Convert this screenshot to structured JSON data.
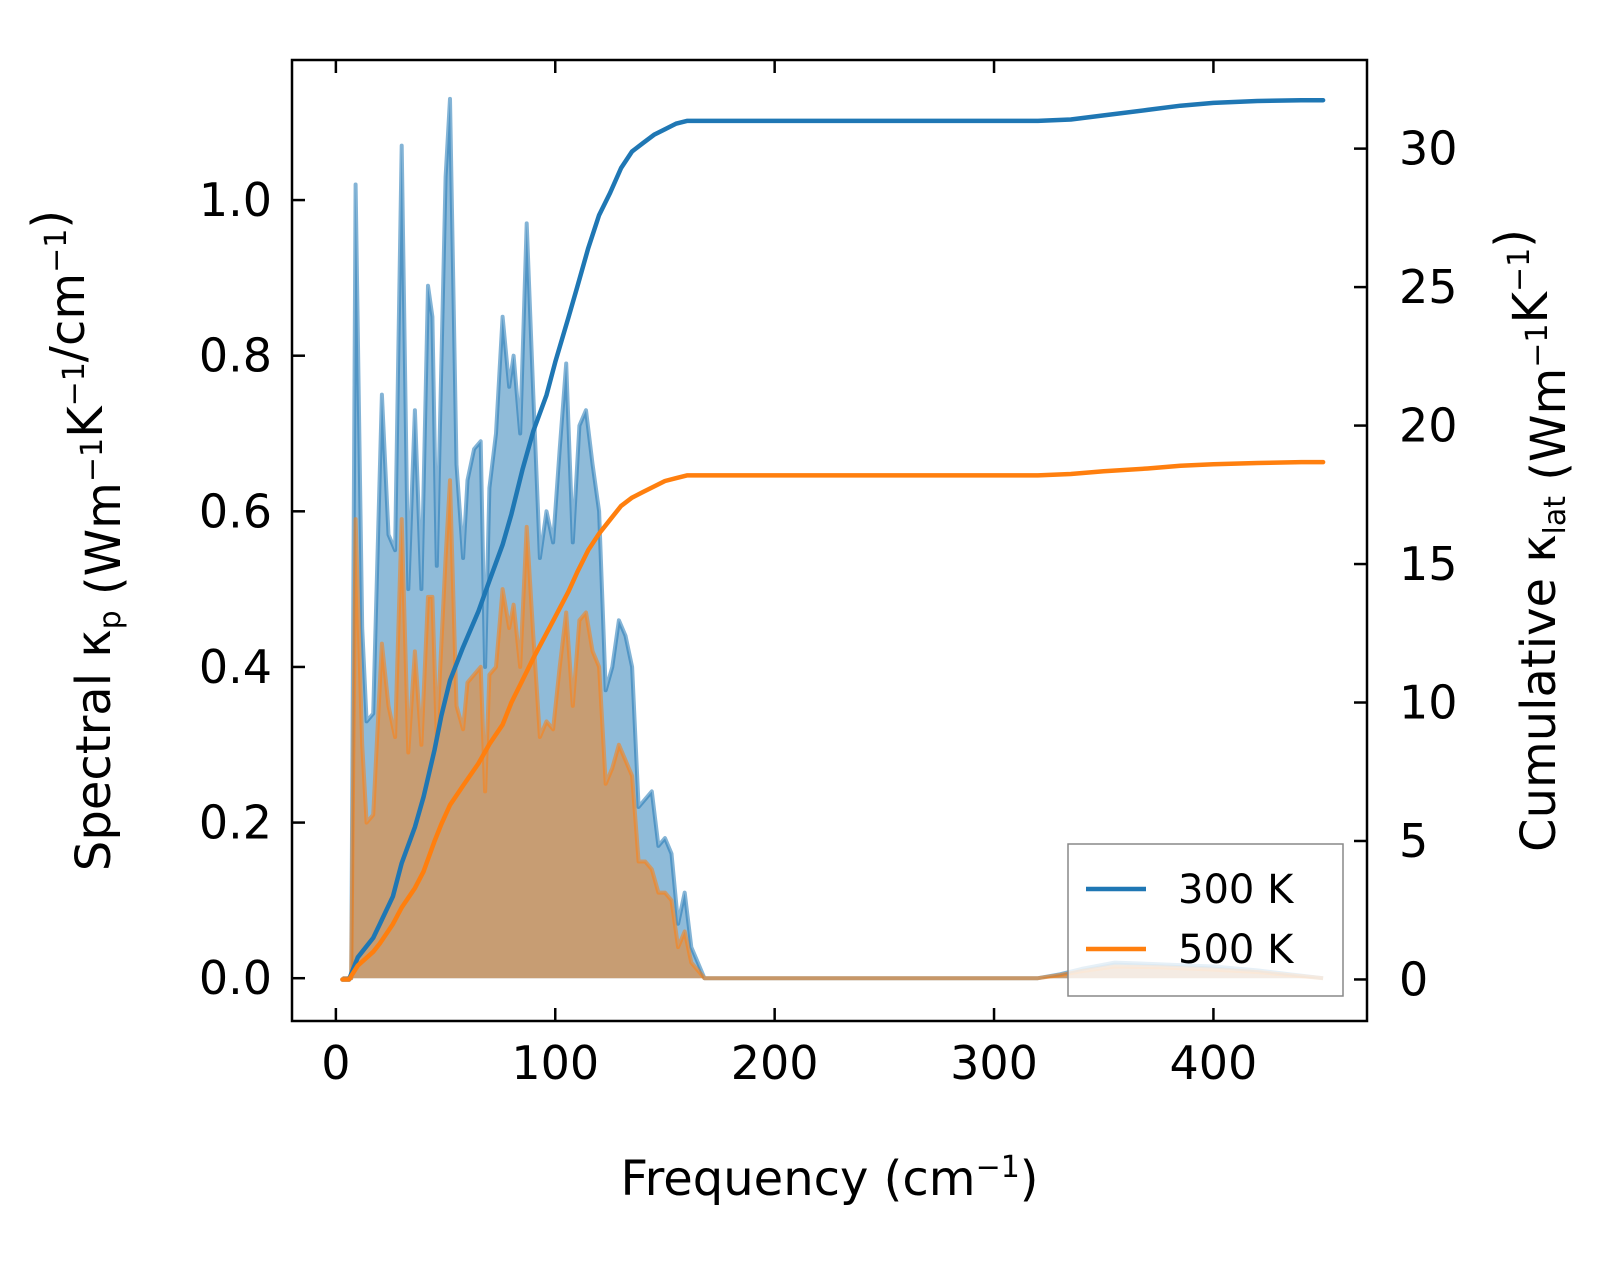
{
  "chart_data": {
    "type": "area",
    "xlabel": {
      "pre": "Frequency (cm",
      "sup": "−1",
      "post": ")"
    },
    "ylabel_left": {
      "parts": [
        {
          "t": "Spectral κ"
        },
        {
          "sub": "p"
        },
        {
          "t": " (Wm"
        },
        {
          "sup": "−1"
        },
        {
          "t": "K"
        },
        {
          "sup": "−1"
        },
        {
          "t": "/cm"
        },
        {
          "sup": "−1"
        },
        {
          "t": ")"
        }
      ]
    },
    "ylabel_right": {
      "parts": [
        {
          "t": "Cumulative κ"
        },
        {
          "sub": "lat"
        },
        {
          "t": " (Wm"
        },
        {
          "sup": "−1"
        },
        {
          "t": "K"
        },
        {
          "sup": "−1"
        },
        {
          "t": ")"
        }
      ]
    },
    "xlim": [
      -20,
      470
    ],
    "ylim_left": [
      -0.055,
      1.18
    ],
    "ylim_right": [
      -1.5,
      33.2
    ],
    "xticks": [
      0,
      100,
      200,
      300,
      400
    ],
    "xtick_labels": [
      "0",
      "100",
      "200",
      "300",
      "400"
    ],
    "yticks_left": [
      0.0,
      0.2,
      0.4,
      0.6,
      0.8,
      1.0
    ],
    "ytick_labels_left": [
      "0.0",
      "0.2",
      "0.4",
      "0.6",
      "0.8",
      "1.0"
    ],
    "yticks_right": [
      0,
      5,
      10,
      15,
      20,
      25,
      30
    ],
    "ytick_labels_right": [
      "0",
      "5",
      "10",
      "15",
      "20",
      "25",
      "30"
    ],
    "legend_position": "bottom-right",
    "spectral_series": [
      {
        "name": "300 K",
        "color": "#1f77b4",
        "points": [
          [
            3,
            0
          ],
          [
            7,
            0
          ],
          [
            9,
            1.02
          ],
          [
            12,
            0.45
          ],
          [
            14,
            0.33
          ],
          [
            17,
            0.34
          ],
          [
            21,
            0.75
          ],
          [
            24,
            0.57
          ],
          [
            27,
            0.55
          ],
          [
            30,
            1.07
          ],
          [
            33,
            0.5
          ],
          [
            36,
            0.73
          ],
          [
            39,
            0.5
          ],
          [
            42,
            0.89
          ],
          [
            44,
            0.85
          ],
          [
            46,
            0.53
          ],
          [
            50,
            1.03
          ],
          [
            52,
            1.13
          ],
          [
            55,
            0.66
          ],
          [
            58,
            0.54
          ],
          [
            60,
            0.64
          ],
          [
            63,
            0.68
          ],
          [
            66,
            0.69
          ],
          [
            68,
            0.4
          ],
          [
            70,
            0.63
          ],
          [
            73,
            0.7
          ],
          [
            76,
            0.85
          ],
          [
            79,
            0.76
          ],
          [
            81,
            0.8
          ],
          [
            84,
            0.7
          ],
          [
            87,
            0.97
          ],
          [
            90,
            0.75
          ],
          [
            93,
            0.54
          ],
          [
            96,
            0.6
          ],
          [
            99,
            0.56
          ],
          [
            102,
            0.68
          ],
          [
            105,
            0.79
          ],
          [
            108,
            0.56
          ],
          [
            111,
            0.71
          ],
          [
            114,
            0.73
          ],
          [
            117,
            0.66
          ],
          [
            120,
            0.6
          ],
          [
            123,
            0.37
          ],
          [
            126,
            0.4
          ],
          [
            129,
            0.46
          ],
          [
            132,
            0.44
          ],
          [
            135,
            0.4
          ],
          [
            138,
            0.22
          ],
          [
            141,
            0.23
          ],
          [
            144,
            0.24
          ],
          [
            147,
            0.17
          ],
          [
            150,
            0.18
          ],
          [
            153,
            0.16
          ],
          [
            156,
            0.07
          ],
          [
            159,
            0.11
          ],
          [
            162,
            0.04
          ],
          [
            165,
            0.02
          ],
          [
            168,
            0.0
          ],
          [
            320,
            0.0
          ],
          [
            330,
            0.005
          ],
          [
            340,
            0.012
          ],
          [
            355,
            0.02
          ],
          [
            375,
            0.018
          ],
          [
            400,
            0.015
          ],
          [
            420,
            0.01
          ],
          [
            435,
            0.005
          ],
          [
            450,
            0.0
          ]
        ]
      },
      {
        "name": "500 K",
        "color": "#ff7f0e",
        "points": [
          [
            3,
            0
          ],
          [
            7,
            0
          ],
          [
            9,
            0.59
          ],
          [
            12,
            0.3
          ],
          [
            14,
            0.2
          ],
          [
            17,
            0.21
          ],
          [
            21,
            0.43
          ],
          [
            24,
            0.35
          ],
          [
            27,
            0.31
          ],
          [
            30,
            0.59
          ],
          [
            33,
            0.29
          ],
          [
            36,
            0.42
          ],
          [
            39,
            0.3
          ],
          [
            42,
            0.49
          ],
          [
            44,
            0.49
          ],
          [
            46,
            0.31
          ],
          [
            50,
            0.54
          ],
          [
            52,
            0.64
          ],
          [
            55,
            0.35
          ],
          [
            58,
            0.32
          ],
          [
            60,
            0.38
          ],
          [
            63,
            0.39
          ],
          [
            66,
            0.4
          ],
          [
            68,
            0.24
          ],
          [
            70,
            0.39
          ],
          [
            73,
            0.4
          ],
          [
            76,
            0.5
          ],
          [
            79,
            0.45
          ],
          [
            81,
            0.48
          ],
          [
            84,
            0.4
          ],
          [
            87,
            0.58
          ],
          [
            90,
            0.44
          ],
          [
            93,
            0.31
          ],
          [
            96,
            0.33
          ],
          [
            99,
            0.32
          ],
          [
            102,
            0.4
          ],
          [
            105,
            0.47
          ],
          [
            108,
            0.35
          ],
          [
            111,
            0.46
          ],
          [
            114,
            0.47
          ],
          [
            117,
            0.42
          ],
          [
            120,
            0.4
          ],
          [
            123,
            0.25
          ],
          [
            126,
            0.27
          ],
          [
            129,
            0.3
          ],
          [
            132,
            0.28
          ],
          [
            135,
            0.26
          ],
          [
            138,
            0.15
          ],
          [
            141,
            0.15
          ],
          [
            144,
            0.14
          ],
          [
            147,
            0.11
          ],
          [
            150,
            0.11
          ],
          [
            153,
            0.1
          ],
          [
            156,
            0.04
          ],
          [
            159,
            0.06
          ],
          [
            162,
            0.02
          ],
          [
            165,
            0.01
          ],
          [
            168,
            0.0
          ],
          [
            320,
            0.0
          ],
          [
            330,
            0.004
          ],
          [
            340,
            0.009
          ],
          [
            355,
            0.015
          ],
          [
            375,
            0.014
          ],
          [
            400,
            0.011
          ],
          [
            420,
            0.008
          ],
          [
            435,
            0.004
          ],
          [
            450,
            0.0
          ]
        ]
      }
    ],
    "cumulative_series": [
      {
        "name": "300 K",
        "color": "#1f77b4",
        "points": [
          [
            3,
            0
          ],
          [
            6,
            0
          ],
          [
            10,
            0.8
          ],
          [
            17,
            1.5
          ],
          [
            20,
            2.0
          ],
          [
            26,
            3.0
          ],
          [
            30,
            4.2
          ],
          [
            36,
            5.5
          ],
          [
            40,
            6.6
          ],
          [
            45,
            8.3
          ],
          [
            48,
            9.5
          ],
          [
            52,
            10.8
          ],
          [
            58,
            12.0
          ],
          [
            65,
            13.3
          ],
          [
            70,
            14.4
          ],
          [
            76,
            15.7
          ],
          [
            80,
            16.8
          ],
          [
            85,
            18.4
          ],
          [
            90,
            19.8
          ],
          [
            96,
            21.1
          ],
          [
            100,
            22.3
          ],
          [
            106,
            23.9
          ],
          [
            110,
            25.0
          ],
          [
            115,
            26.4
          ],
          [
            120,
            27.6
          ],
          [
            125,
            28.4
          ],
          [
            130,
            29.3
          ],
          [
            135,
            29.9
          ],
          [
            140,
            30.2
          ],
          [
            145,
            30.5
          ],
          [
            150,
            30.7
          ],
          [
            155,
            30.9
          ],
          [
            160,
            31.0
          ],
          [
            165,
            31.0
          ],
          [
            200,
            31.0
          ],
          [
            320,
            31.0
          ],
          [
            335,
            31.05
          ],
          [
            350,
            31.2
          ],
          [
            370,
            31.4
          ],
          [
            385,
            31.55
          ],
          [
            400,
            31.65
          ],
          [
            420,
            31.72
          ],
          [
            440,
            31.75
          ],
          [
            450,
            31.75
          ]
        ]
      },
      {
        "name": "500 K",
        "color": "#ff7f0e",
        "points": [
          [
            3,
            0
          ],
          [
            6,
            0
          ],
          [
            10,
            0.5
          ],
          [
            17,
            1.0
          ],
          [
            20,
            1.3
          ],
          [
            26,
            2.0
          ],
          [
            30,
            2.6
          ],
          [
            36,
            3.3
          ],
          [
            40,
            3.9
          ],
          [
            45,
            5.0
          ],
          [
            48,
            5.6
          ],
          [
            52,
            6.3
          ],
          [
            58,
            7.0
          ],
          [
            65,
            7.8
          ],
          [
            70,
            8.5
          ],
          [
            76,
            9.2
          ],
          [
            80,
            10.0
          ],
          [
            85,
            10.8
          ],
          [
            90,
            11.6
          ],
          [
            96,
            12.5
          ],
          [
            100,
            13.1
          ],
          [
            106,
            14.0
          ],
          [
            110,
            14.7
          ],
          [
            115,
            15.5
          ],
          [
            120,
            16.1
          ],
          [
            125,
            16.6
          ],
          [
            130,
            17.1
          ],
          [
            135,
            17.4
          ],
          [
            140,
            17.6
          ],
          [
            145,
            17.8
          ],
          [
            150,
            18.0
          ],
          [
            155,
            18.1
          ],
          [
            160,
            18.2
          ],
          [
            200,
            18.2
          ],
          [
            320,
            18.2
          ],
          [
            335,
            18.25
          ],
          [
            350,
            18.35
          ],
          [
            370,
            18.45
          ],
          [
            385,
            18.55
          ],
          [
            400,
            18.6
          ],
          [
            420,
            18.65
          ],
          [
            440,
            18.68
          ],
          [
            450,
            18.68
          ]
        ]
      }
    ]
  }
}
